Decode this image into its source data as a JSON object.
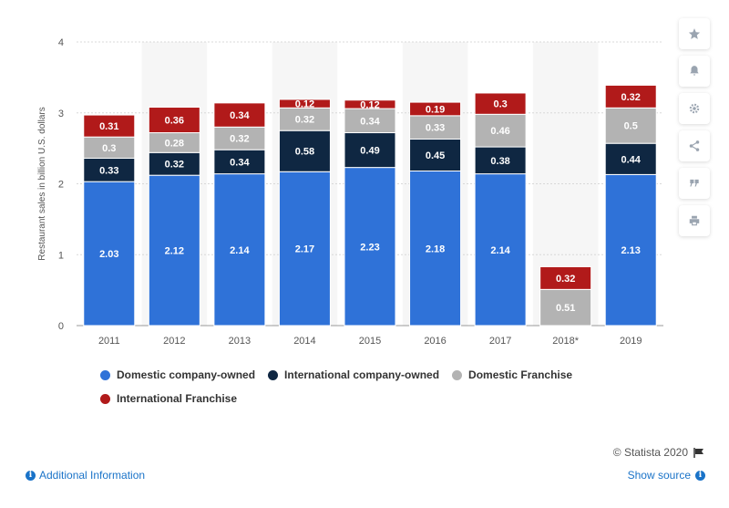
{
  "chart_data": {
    "type": "bar",
    "stacked": true,
    "categories": [
      "2011",
      "2012",
      "2013",
      "2014",
      "2015",
      "2016",
      "2017",
      "2018*",
      "2019"
    ],
    "series": [
      {
        "name": "Domestic company-owned",
        "color": "#2f72d8",
        "values": [
          2.03,
          2.12,
          2.14,
          2.17,
          2.23,
          2.18,
          2.14,
          null,
          2.13
        ]
      },
      {
        "name": "International company-owned",
        "color": "#0f2742",
        "values": [
          0.33,
          0.32,
          0.34,
          0.58,
          0.49,
          0.45,
          0.38,
          null,
          0.44
        ]
      },
      {
        "name": "Domestic Franchise",
        "color": "#b3b3b3",
        "values": [
          0.3,
          0.28,
          0.32,
          0.32,
          0.34,
          0.33,
          0.46,
          0.51,
          0.5
        ]
      },
      {
        "name": "International Franchise",
        "color": "#b11a1a",
        "values": [
          0.31,
          0.36,
          0.34,
          0.12,
          0.12,
          0.19,
          0.3,
          0.32,
          0.32
        ]
      }
    ],
    "ylabel": "Restaurant sales in billion U.S. dollars",
    "xlabel": "",
    "ylim": [
      0,
      4
    ],
    "yticks": [
      0,
      1,
      2,
      3,
      4
    ],
    "grid": true,
    "legend_position": "bottom"
  },
  "footer": {
    "copyright": "© Statista 2020",
    "additional_info": "Additional Information",
    "show_source": "Show source"
  },
  "toolbar": {
    "icons": [
      "star-icon",
      "bell-icon",
      "gear-icon",
      "share-icon",
      "quote-icon",
      "print-icon"
    ]
  }
}
